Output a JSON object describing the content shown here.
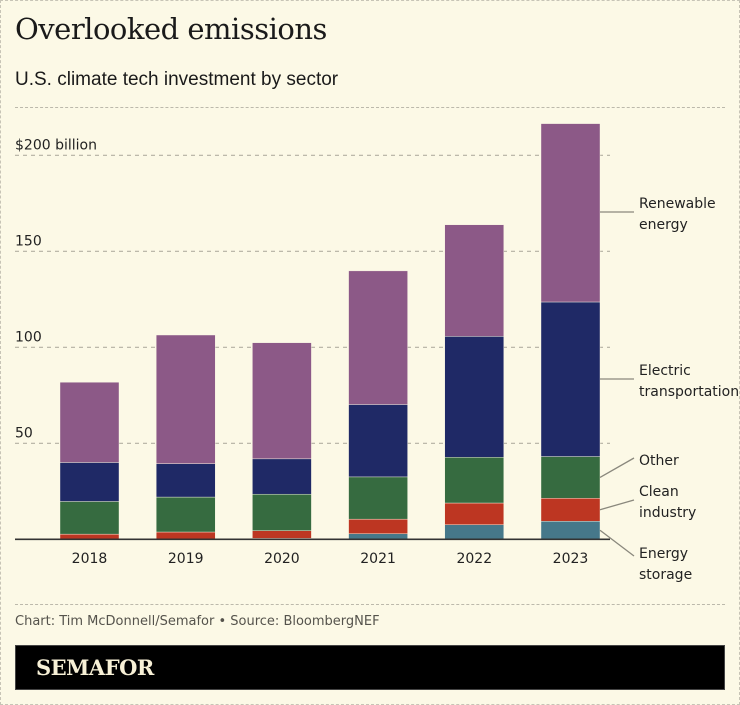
{
  "header": {
    "title": "Overlooked emissions",
    "subtitle": "U.S. climate tech investment by sector"
  },
  "footer": {
    "credit": "Chart: Tim McDonnell/Semafor • Source: BloombergNEF",
    "logo": "SEMAFOR"
  },
  "chart_data": {
    "type": "bar",
    "stacked": true,
    "title": "Overlooked emissions",
    "subtitle": "U.S. climate tech investment by sector",
    "xlabel": "",
    "ylabel": "",
    "ylim": [
      0,
      220
    ],
    "yticks": [
      50,
      100,
      150,
      200
    ],
    "ytick_labels": [
      "50",
      "100",
      "150",
      "$200 billion"
    ],
    "grid": true,
    "legend": "direct labels on right",
    "categories": [
      "2018",
      "2019",
      "2020",
      "2021",
      "2022",
      "2023"
    ],
    "series": [
      {
        "name": "Energy storage",
        "label_lines": [
          "Energy",
          "storage"
        ],
        "color": "#46788a",
        "values": [
          0.2,
          0.3,
          0.5,
          2.9,
          7.6,
          9.4
        ]
      },
      {
        "name": "Clean industry",
        "label_lines": [
          "Clean",
          "industry"
        ],
        "color": "#bd3622",
        "values": [
          2.5,
          3.5,
          4.0,
          7.6,
          11.3,
          12.0
        ]
      },
      {
        "name": "Other",
        "label_lines": [
          "Other"
        ],
        "color": "#366b40",
        "values": [
          17.0,
          18.2,
          19.0,
          22.0,
          23.8,
          21.7
        ]
      },
      {
        "name": "Electric transportation",
        "label_lines": [
          "Electric",
          "transportation"
        ],
        "color": "#1f2966",
        "values": [
          20.3,
          17.4,
          18.4,
          37.7,
          63.0,
          80.5
        ]
      },
      {
        "name": "Renewable energy",
        "label_lines": [
          "Renewable",
          "energy"
        ],
        "color": "#8c5987",
        "values": [
          41.8,
          67.0,
          60.5,
          69.6,
          58.1,
          92.9
        ]
      }
    ]
  }
}
